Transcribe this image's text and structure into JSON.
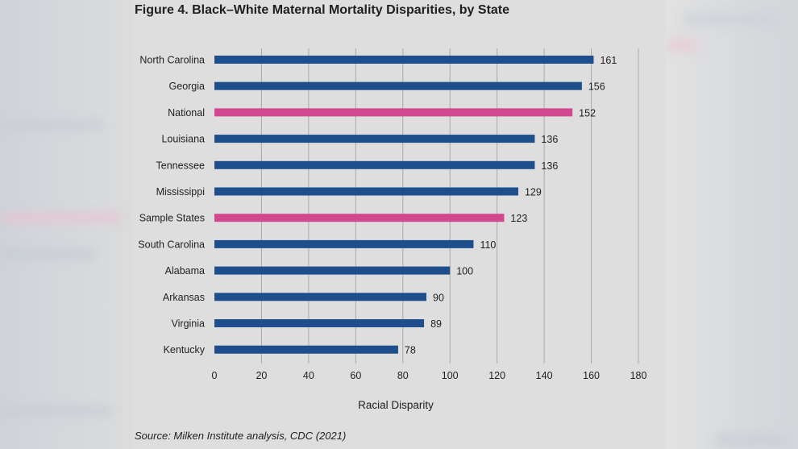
{
  "chart_data": {
    "type": "bar",
    "orientation": "horizontal",
    "title": "Figure 4. Black–White Maternal Mortality Disparities, by State",
    "xlabel": "Racial Disparity",
    "source": "Source: Milken Institute analysis, CDC (2021)",
    "categories": [
      "North Carolina",
      "Georgia",
      "National",
      "Louisiana",
      "Tennessee",
      "Mississippi",
      "Sample States",
      "South Carolina",
      "Alabama",
      "Arkansas",
      "Virginia",
      "Kentucky"
    ],
    "values": [
      161,
      156,
      152,
      136,
      136,
      129,
      123,
      110,
      100,
      90,
      89,
      78
    ],
    "highlight": [
      false,
      false,
      true,
      false,
      false,
      false,
      true,
      false,
      false,
      false,
      false,
      false
    ],
    "xlim": [
      0,
      180
    ],
    "xticks": [
      0,
      20,
      40,
      60,
      80,
      100,
      120,
      140,
      160,
      180
    ],
    "grid": true,
    "colors": {
      "default": "#1f4e8c",
      "highlight": "#d1488f"
    }
  }
}
